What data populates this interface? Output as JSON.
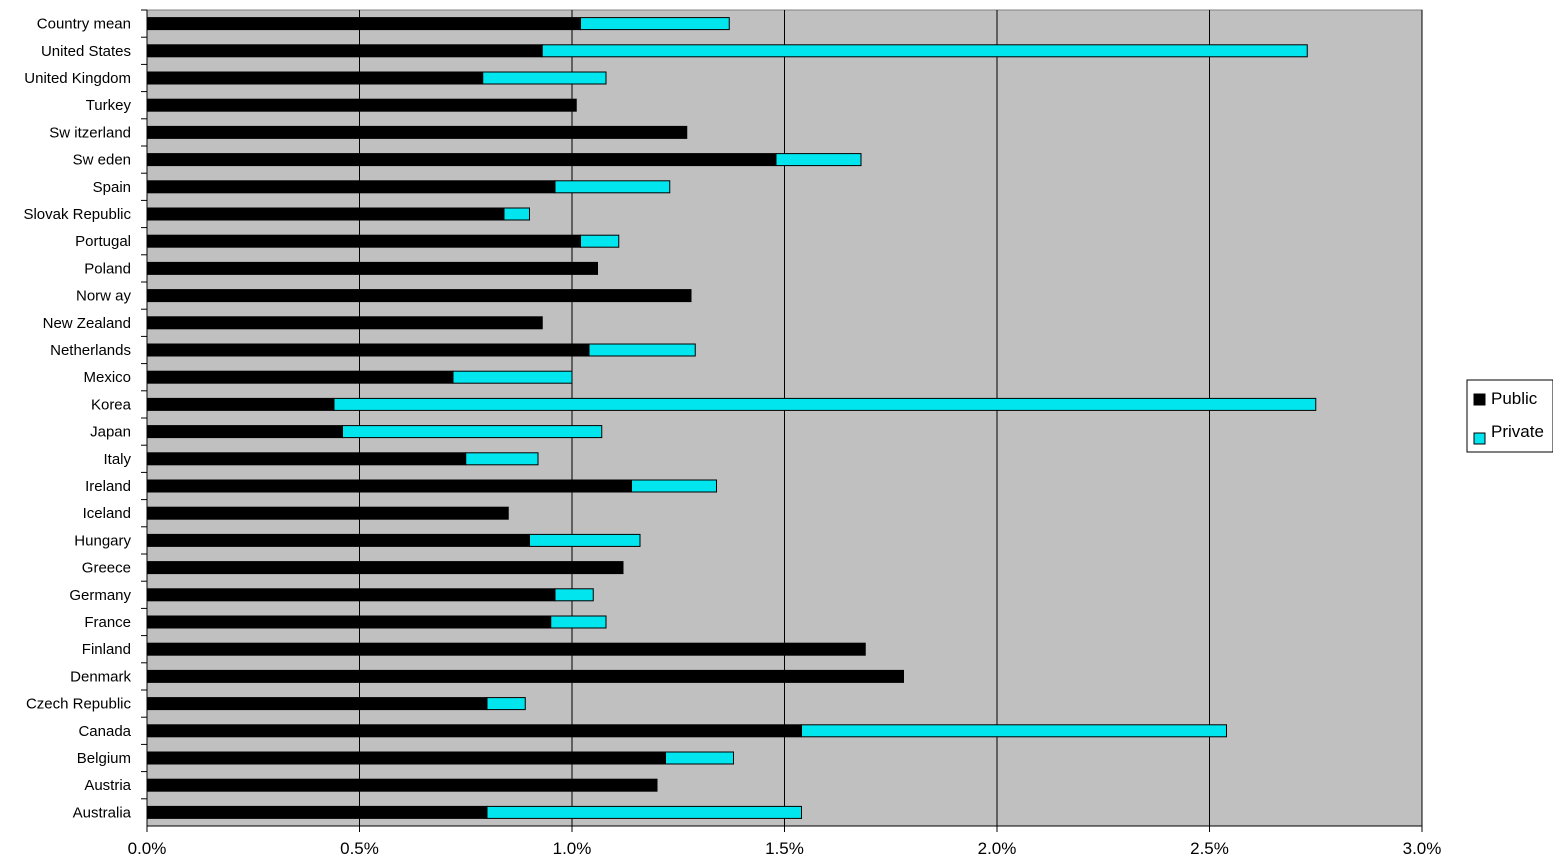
{
  "chart_data": {
    "type": "bar",
    "orientation": "horizontal",
    "stacked": true,
    "title": "",
    "xlabel": "",
    "ylabel": "",
    "xlim": [
      0,
      3.0
    ],
    "x_ticks": [
      0,
      0.5,
      1.0,
      1.5,
      2.0,
      2.5,
      3.0
    ],
    "x_tick_labels": [
      "0.0%",
      "0.5%",
      "1.0%",
      "1.5%",
      "2.0%",
      "2.5%",
      "3.0%"
    ],
    "grid": "vertical",
    "legend_position": "right",
    "colors": {
      "Public": "#000000",
      "Private": "#00e5ee",
      "plot_background": "#c0c0c0"
    },
    "categories": [
      "Country mean",
      "United States",
      "United Kingdom",
      "Turkey",
      "Sw itzerland",
      "Sw eden",
      "Spain",
      "Slovak Republic",
      "Portugal",
      "Poland",
      "Norw ay",
      "New Zealand",
      "Netherlands",
      "Mexico",
      "Korea",
      "Japan",
      "Italy",
      "Ireland",
      "Iceland",
      "Hungary",
      "Greece",
      "Germany",
      "France",
      "Finland",
      "Denmark",
      "Czech Republic",
      "Canada",
      "Belgium",
      "Austria",
      "Australia"
    ],
    "series": [
      {
        "name": "Public",
        "values": [
          1.02,
          0.93,
          0.79,
          1.01,
          1.27,
          1.48,
          0.96,
          0.84,
          1.02,
          1.06,
          1.28,
          0.93,
          1.04,
          0.72,
          0.44,
          0.46,
          0.75,
          1.14,
          0.85,
          0.9,
          1.12,
          0.96,
          0.95,
          1.69,
          1.78,
          0.8,
          1.54,
          1.22,
          1.2,
          0.8
        ]
      },
      {
        "name": "Private",
        "values": [
          0.35,
          1.8,
          0.29,
          0.0,
          0.0,
          0.2,
          0.27,
          0.06,
          0.09,
          0.0,
          0.0,
          0.0,
          0.25,
          0.28,
          2.31,
          0.61,
          0.17,
          0.2,
          0.0,
          0.26,
          0.0,
          0.09,
          0.13,
          0.0,
          0.0,
          0.09,
          1.0,
          0.16,
          0.0,
          0.74
        ]
      }
    ]
  }
}
